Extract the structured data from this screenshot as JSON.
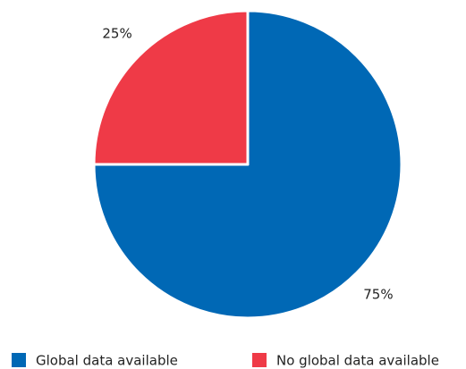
{
  "chart_data": {
    "type": "pie",
    "categories": [
      "Global data available",
      "No global data available"
    ],
    "values": [
      75,
      25
    ],
    "value_labels": [
      "75%",
      "25%"
    ],
    "colors": [
      "#0068b5",
      "#ef3a47"
    ],
    "start_angle": 0,
    "direction": "clockwise",
    "legend": "bottom"
  }
}
